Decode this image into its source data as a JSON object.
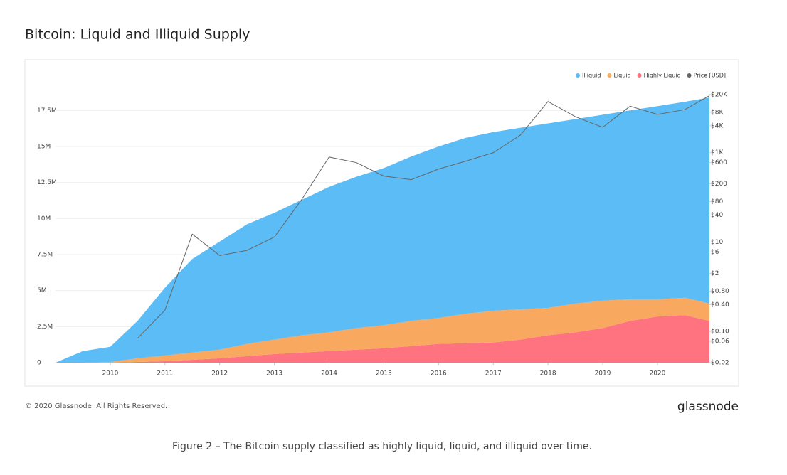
{
  "chart_data": {
    "type": "stacked-area",
    "title": "Bitcoin: Liquid and Illiquid Supply",
    "watermark": "glassnode",
    "x": [
      2009,
      2009.5,
      2010,
      2010.5,
      2011,
      2011.5,
      2012,
      2012.5,
      2013,
      2013.5,
      2014,
      2014.5,
      2015,
      2015.5,
      2016,
      2016.5,
      2017,
      2017.5,
      2018,
      2018.5,
      2019,
      2019.5,
      2020,
      2020.5,
      2020.95
    ],
    "xlim": [
      2009,
      2020.95
    ],
    "xticks": [
      2010,
      2011,
      2012,
      2013,
      2014,
      2015,
      2016,
      2017,
      2018,
      2019,
      2020
    ],
    "ylim": [
      0,
      18600000
    ],
    "yticks": [
      0,
      {
        "value": 2500000,
        "label": "2.5M"
      },
      {
        "value": 5000000,
        "label": "5M"
      },
      {
        "value": 7500000,
        "label": "7.5M"
      },
      {
        "value": 10000000,
        "label": "10M"
      },
      {
        "value": 12500000,
        "label": "12.5M"
      },
      {
        "value": 15000000,
        "label": "15M"
      },
      {
        "value": 17500000,
        "label": "17.5M"
      }
    ],
    "y2lim": [
      0.02,
      20000
    ],
    "y2scale": "log",
    "y2ticks": [
      {
        "value": 20000,
        "label": "$20K"
      },
      {
        "value": 8000,
        "label": "$8K"
      },
      {
        "value": 4000,
        "label": "$4K"
      },
      {
        "value": 1000,
        "label": "$1K"
      },
      {
        "value": 600,
        "label": "$600"
      },
      {
        "value": 200,
        "label": "$200"
      },
      {
        "value": 80,
        "label": "$80"
      },
      {
        "value": 40,
        "label": "$40"
      },
      {
        "value": 10,
        "label": "$10"
      },
      {
        "value": 6,
        "label": "$6"
      },
      {
        "value": 2,
        "label": "$2"
      },
      {
        "value": 0.8,
        "label": "$0.80"
      },
      {
        "value": 0.4,
        "label": "$0.40"
      },
      {
        "value": 0.1,
        "label": "$0.10"
      },
      {
        "value": 0.06,
        "label": "$0.06"
      },
      {
        "value": 0.02,
        "label": "$0.02"
      }
    ],
    "grid": true,
    "legend": "top-right",
    "series": [
      {
        "name": "Illiquid",
        "color": "#5bbcf6",
        "values": [
          0,
          800000,
          1050000,
          2600000,
          4700000,
          6500000,
          7500000,
          8300000,
          8800000,
          9400000,
          10100000,
          10500000,
          10900000,
          11400000,
          11900000,
          12200000,
          12400000,
          12600000,
          12800000,
          12800000,
          12900000,
          13100000,
          13400000,
          13600000,
          14300000
        ]
      },
      {
        "name": "Liquid",
        "color": "#f9a860",
        "values": [
          0,
          0,
          50000,
          250000,
          400000,
          500000,
          600000,
          850000,
          1000000,
          1200000,
          1300000,
          1500000,
          1600000,
          1750000,
          1800000,
          2050000,
          2200000,
          2100000,
          1900000,
          2000000,
          1900000,
          1500000,
          1200000,
          1200000,
          1200000
        ]
      },
      {
        "name": "Highly Liquid",
        "color": "#ff7380",
        "values": [
          0,
          0,
          0,
          50000,
          100000,
          200000,
          300000,
          450000,
          600000,
          700000,
          800000,
          900000,
          1000000,
          1150000,
          1300000,
          1350000,
          1400000,
          1600000,
          1900000,
          2100000,
          2400000,
          2900000,
          3200000,
          3300000,
          2900000
        ]
      },
      {
        "name": "Price [USD]",
        "color": "#666666",
        "axis": "y2",
        "values": [
          null,
          null,
          null,
          0.07,
          0.3,
          15,
          5,
          6.5,
          13,
          90,
          800,
          600,
          300,
          250,
          430,
          650,
          1000,
          2500,
          14000,
          6400,
          3700,
          11000,
          7200,
          9200,
          19000
        ]
      }
    ]
  },
  "footer": {
    "copyright": "© 2020 Glassnode. All Rights Reserved.",
    "logo": "glassnode"
  },
  "caption": "Figure 2 – The Bitcoin supply classified as highly liquid, liquid, and illiquid over time."
}
